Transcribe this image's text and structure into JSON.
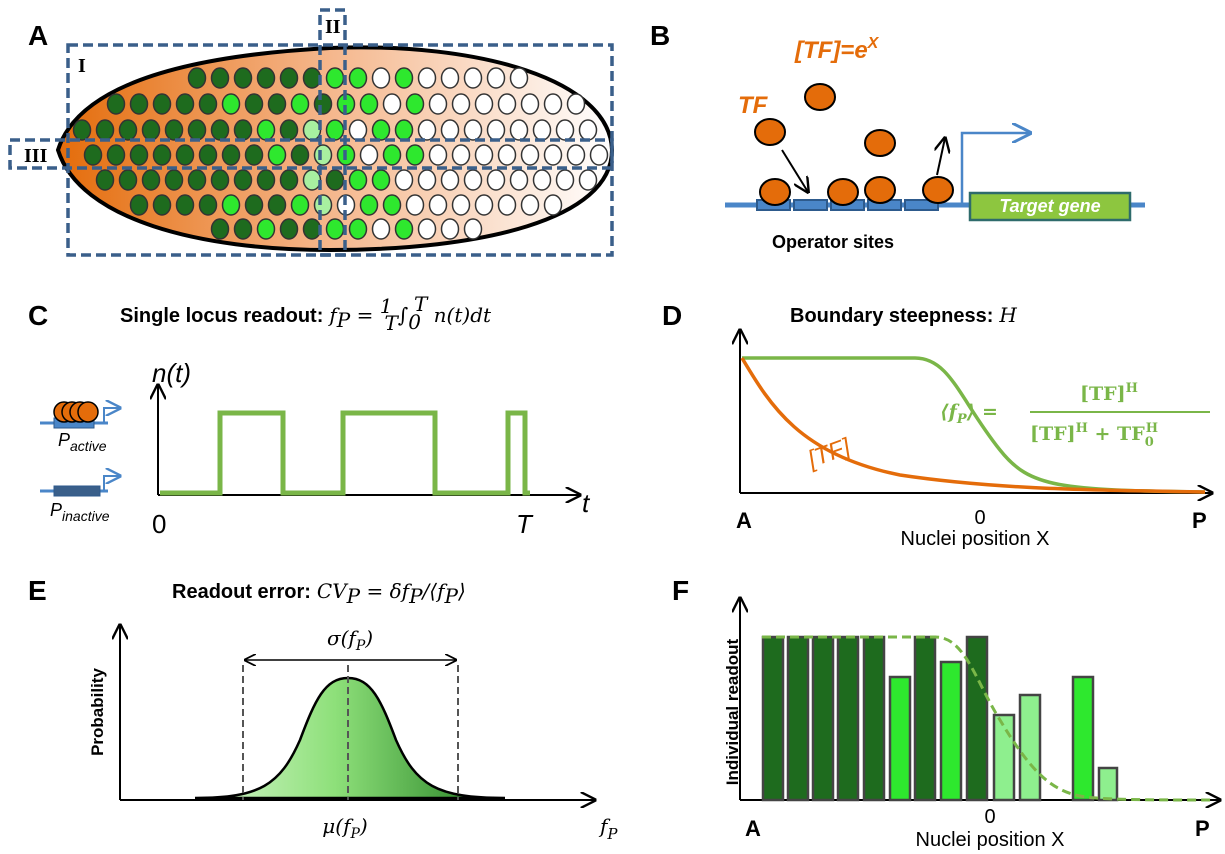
{
  "panels": {
    "A": {
      "label": "A",
      "regions": [
        "I",
        "II",
        "III"
      ]
    },
    "B": {
      "label": "B",
      "tf_eq": {
        "base": "[TF]=e",
        "sup": "X"
      },
      "tf": "TF",
      "target": "Target gene",
      "operators": "Operator sites"
    },
    "C": {
      "label": "C",
      "title": "Single locus readout",
      "colon": ":",
      "formula": {
        "f": "f",
        "sub": "P",
        "eq": " = ",
        "num": "1",
        "den": "T",
        "int": "∫",
        "lo": "0",
        "hi": "T",
        "rest": " n(t)dt"
      },
      "y_axis": "n(t)",
      "x_axis": "t",
      "x_start": "0",
      "x_end": "T",
      "active": {
        "base": "P",
        "sub": "active"
      },
      "inactive": {
        "base": "P",
        "sub": "inactive"
      }
    },
    "D": {
      "label": "D",
      "title": "Boundary steepness",
      "colon": ":",
      "title_var": "H",
      "curve_tf": "[TF]",
      "formula": {
        "lhs": "⟨f",
        "lhs_sub": "P",
        "lhs_end": "⟩ = ",
        "num": "[TF]",
        "num_sup": "H",
        "den1": "[TF]",
        "den1_sup": "H",
        "plus": " + TF",
        "den2_sub": "0",
        "den2_sup": "H"
      },
      "x_left": "A",
      "x_mid": "0",
      "x_right": "P",
      "x_axis": "Nuclei position X"
    },
    "E": {
      "label": "E",
      "title": "Readout error",
      "colon": ":",
      "formula": {
        "cv": "CV",
        "cv_sub": "P",
        "eq": " = δf",
        "f_sub": "P",
        "div": "/⟨f",
        "f2_sub": "P",
        "end": "⟩"
      },
      "sigma": {
        "base": "σ(f",
        "sub": "P",
        "end": ")"
      },
      "mu": {
        "base": "μ(f",
        "sub": "P",
        "end": ")"
      },
      "y_axis": "Probability",
      "x_axis": {
        "base": "f",
        "sub": "P"
      }
    },
    "F": {
      "label": "F",
      "y_axis": "Individual readout",
      "x_left": "A",
      "x_mid": "0",
      "x_right": "P",
      "x_axis": "Nuclei position X"
    }
  }
}
